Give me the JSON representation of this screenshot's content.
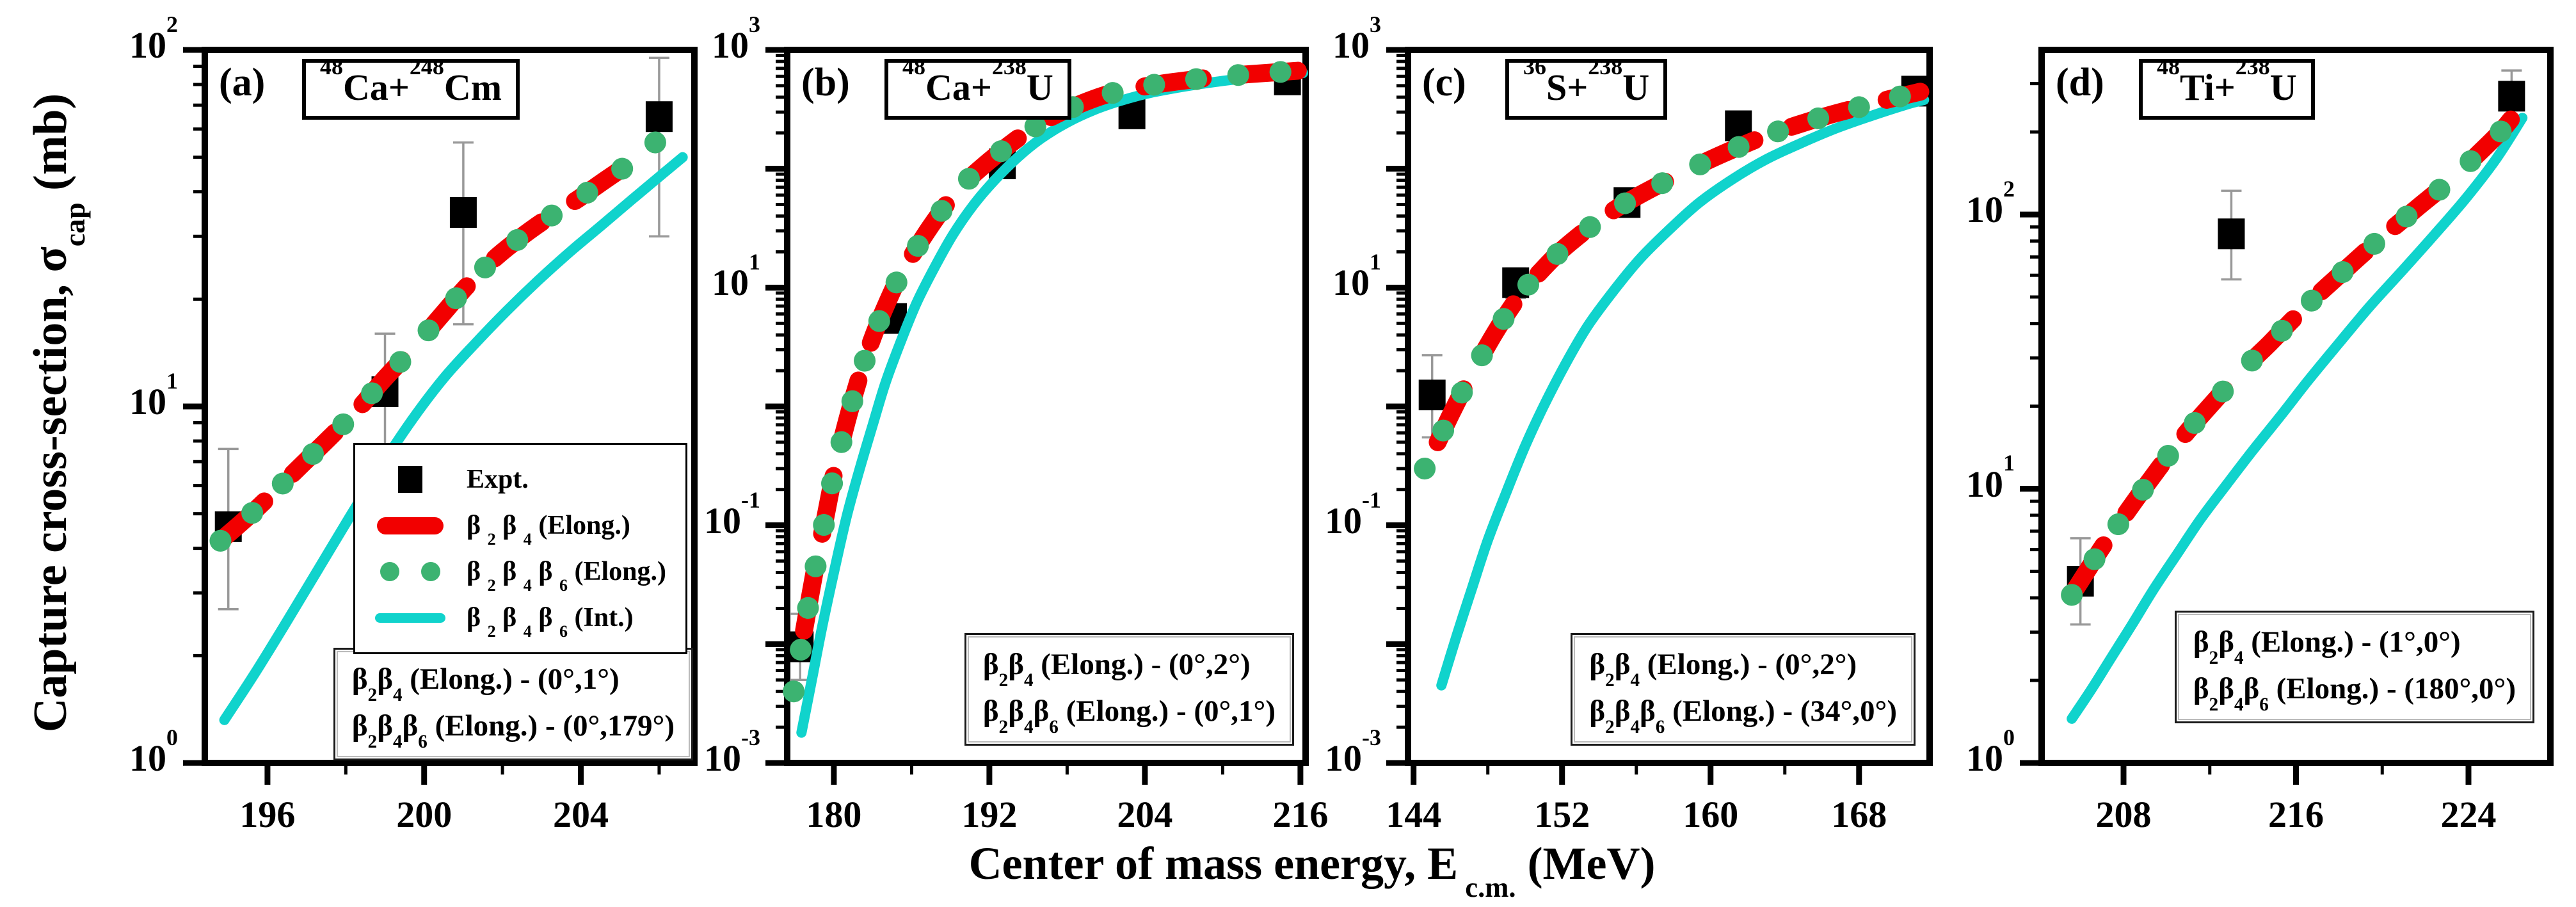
{
  "colors": {
    "expt": "#000000",
    "elong_red": "#f20000",
    "elong_green": "#3cb371",
    "int_cyan": "#10d3cc",
    "error_bar": "#999999",
    "frame": "#000000"
  },
  "chart_data": {
    "type": "line",
    "scale": "log-y",
    "xlabel_rich": [
      {
        "t": "Center of mass energy, E"
      },
      {
        "t": " c.m.",
        "v": "sub"
      },
      {
        "t": " (MeV)"
      }
    ],
    "ylabel_rich": [
      {
        "t": "Capture cross-section,  σ"
      },
      {
        "t": "cap",
        "v": "sub"
      },
      {
        "t": " (mb)"
      }
    ],
    "legend": {
      "panel": "a",
      "items": [
        {
          "marker": "expt-square",
          "label": [
            {
              "t": "Expt."
            }
          ]
        },
        {
          "marker": "red-dash",
          "label": [
            {
              "t": "β "
            },
            {
              "t": "2",
              "v": "sub"
            },
            {
              "t": " β "
            },
            {
              "t": "4",
              "v": "sub"
            },
            {
              "t": " (Elong.)"
            }
          ]
        },
        {
          "marker": "green-dots",
          "label": [
            {
              "t": "β "
            },
            {
              "t": "2",
              "v": "sub"
            },
            {
              "t": " β "
            },
            {
              "t": "4",
              "v": "sub"
            },
            {
              "t": " β "
            },
            {
              "t": "6",
              "v": "sub"
            },
            {
              "t": " (Elong.)"
            }
          ]
        },
        {
          "marker": "cyan-line",
          "label": [
            {
              "t": "β "
            },
            {
              "t": "2",
              "v": "sub"
            },
            {
              "t": " β "
            },
            {
              "t": "4",
              "v": "sub"
            },
            {
              "t": " β "
            },
            {
              "t": "6",
              "v": "sub"
            },
            {
              "t": " (Int.)"
            }
          ]
        }
      ]
    },
    "panels": [
      {
        "id": "a",
        "letter": "(a)",
        "title_rich": [
          {
            "t": "48",
            "v": "sup"
          },
          {
            "t": "Ca+"
          },
          {
            "t": "248",
            "v": "sup"
          },
          {
            "t": "Cm"
          }
        ],
        "x": {
          "min": 194.4,
          "max": 206.9,
          "major": [
            196,
            200,
            204
          ],
          "minor": [
            198,
            202,
            206
          ]
        },
        "y": {
          "logmin": 0,
          "logmax": 2,
          "label_exps": [
            2,
            1,
            0
          ]
        },
        "note_line1": [
          {
            "t": "β"
          },
          {
            "t": "2",
            "v": "sub"
          },
          {
            "t": "β"
          },
          {
            "t": "4",
            "v": "sub"
          },
          {
            "t": " (Elong.) -  (0°,1°)"
          }
        ],
        "note_line2": [
          {
            "t": "β"
          },
          {
            "t": "2",
            "v": "sub"
          },
          {
            "t": "β"
          },
          {
            "t": "4",
            "v": "sub"
          },
          {
            "t": "β"
          },
          {
            "t": "6",
            "v": "sub"
          },
          {
            "t": " (Elong.) -  (0°,179°)"
          }
        ],
        "expt": {
          "x": [
            195,
            199,
            201,
            206
          ],
          "y": [
            4.6,
            11,
            35,
            65
          ],
          "lo": [
            2.7,
            7.5,
            17,
            30
          ],
          "hi": [
            7.6,
            16,
            55,
            95
          ]
        },
        "elong": {
          "red_start": 0,
          "red_end": 15,
          "x": [
            194.8,
            195.5,
            196.2,
            196.9,
            197.6,
            198.3,
            199.0,
            199.7,
            200.4,
            201.1,
            201.8,
            202.5,
            203.2,
            203.9,
            204.6,
            205.3,
            205.9,
            206.4
          ],
          "y": [
            4.2,
            4.9,
            5.8,
            6.9,
            8.2,
            9.8,
            12.0,
            14.5,
            17.8,
            21.8,
            26.0,
            30.0,
            34.0,
            38.0,
            43.0,
            48.5,
            55.0,
            62.0
          ]
        },
        "int": {
          "x": [
            194.9,
            195.7,
            196.5,
            197.3,
            198.1,
            198.9,
            199.7,
            200.5,
            201.3,
            202.1,
            202.9,
            203.7,
            204.5,
            205.3,
            206.1,
            206.6
          ],
          "y": [
            1.32,
            1.8,
            2.5,
            3.5,
            4.9,
            6.8,
            9.2,
            12.0,
            15.0,
            18.5,
            22.5,
            27.0,
            32.0,
            38.0,
            45.0,
            50.0
          ]
        }
      },
      {
        "id": "b",
        "letter": "(b)",
        "title_rich": [
          {
            "t": "48",
            "v": "sup"
          },
          {
            "t": "Ca+"
          },
          {
            "t": "238",
            "v": "sup"
          },
          {
            "t": "U"
          }
        ],
        "x": {
          "min": 176.4,
          "max": 216.4,
          "major": [
            180,
            192,
            204,
            216
          ],
          "minor": [
            186,
            198,
            210
          ]
        },
        "y": {
          "logmin": -3,
          "logmax": 3,
          "label_exps": [
            3,
            1,
            -1,
            -3
          ]
        },
        "note_line1": [
          {
            "t": "β"
          },
          {
            "t": "2",
            "v": "sub"
          },
          {
            "t": "β"
          },
          {
            "t": "4",
            "v": "sub"
          },
          {
            "t": " (Elong.) -  (0°,2°)"
          }
        ],
        "note_line2": [
          {
            "t": "β"
          },
          {
            "t": "2",
            "v": "sub"
          },
          {
            "t": "β"
          },
          {
            "t": "4",
            "v": "sub"
          },
          {
            "t": "β"
          },
          {
            "t": "6",
            "v": "sub"
          },
          {
            "t": " (Elong.) -  (0°,1°)"
          }
        ],
        "expt": {
          "x": [
            177.4,
            184.6,
            193,
            203,
            215
          ],
          "y": [
            0.0095,
            5.5,
            110,
            290,
            560
          ],
          "lo": [
            0.005,
            4.2,
            88,
            235,
            480
          ],
          "hi": [
            0.018,
            7.2,
            138,
            355,
            650
          ]
        },
        "elong": {
          "red_start": 1,
          "red_end": 26,
          "x": [
            176.9,
            177.7,
            178.5,
            179.3,
            180.1,
            181,
            182,
            183,
            184,
            185,
            186.2,
            187.4,
            188.8,
            190.2,
            191.8,
            193.4,
            195.2,
            197,
            199,
            201,
            203,
            205,
            207.2,
            209.4,
            211.6,
            213.8,
            215.8
          ],
          "y": [
            0.004,
            0.013,
            0.04,
            0.11,
            0.3,
            0.75,
            1.8,
            3.8,
            7,
            12,
            20,
            32,
            52,
            78,
            112,
            155,
            215,
            280,
            350,
            420,
            470,
            515,
            555,
            590,
            620,
            645,
            668
          ]
        },
        "int": {
          "x": [
            177.5,
            178.3,
            179.1,
            180,
            181,
            182,
            183,
            184,
            185.2,
            186.4,
            187.8,
            189.2,
            190.8,
            192.4,
            194.2,
            196,
            198,
            200,
            202,
            204,
            206,
            208.2,
            210.4,
            212.6,
            214.8,
            216.2
          ],
          "y": [
            0.0018,
            0.005,
            0.014,
            0.04,
            0.12,
            0.3,
            0.7,
            1.6,
            3.6,
            7.5,
            15,
            28,
            50,
            80,
            125,
            180,
            245,
            310,
            370,
            425,
            470,
            515,
            555,
            590,
            620,
            640
          ]
        }
      },
      {
        "id": "c",
        "letter": "(c)",
        "title_rich": [
          {
            "t": "36",
            "v": "sup"
          },
          {
            "t": "S+"
          },
          {
            "t": "238",
            "v": "sup"
          },
          {
            "t": "U"
          }
        ],
        "x": {
          "min": 143.7,
          "max": 171.8,
          "major": [
            144,
            152,
            160,
            168
          ],
          "minor": [
            148,
            156,
            164
          ]
        },
        "y": {
          "logmin": -3,
          "logmax": 3,
          "label_exps": [
            3,
            1,
            -1,
            -3
          ]
        },
        "note_line1": [
          {
            "t": "β"
          },
          {
            "t": "2",
            "v": "sub"
          },
          {
            "t": "β"
          },
          {
            "t": "4",
            "v": "sub"
          },
          {
            "t": " (Elong.) -  (0°,2°)"
          }
        ],
        "note_line2": [
          {
            "t": "β"
          },
          {
            "t": "2",
            "v": "sub"
          },
          {
            "t": "β"
          },
          {
            "t": "4",
            "v": "sub"
          },
          {
            "t": "β"
          },
          {
            "t": "6",
            "v": "sub"
          },
          {
            "t": " (Elong.) -  (34°,0°)"
          }
        ],
        "expt": {
          "x": [
            145,
            149.5,
            155.5,
            161.5,
            171
          ],
          "y": [
            1.25,
            11,
            52,
            230,
            450
          ],
          "lo": [
            0.55,
            8.2,
            40,
            185,
            385
          ],
          "hi": [
            2.7,
            14.5,
            67,
            285,
            530
          ]
        },
        "elong": {
          "red_start": 1,
          "red_end": 23,
          "x": [
            144.6,
            145.3,
            146,
            146.8,
            147.6,
            148.4,
            149.2,
            150,
            150.9,
            151.8,
            152.8,
            153.8,
            154.9,
            156,
            157.2,
            158.5,
            159.9,
            161.4,
            163,
            164.6,
            166.3,
            168,
            169.7,
            171.3
          ],
          "y": [
            0.3,
            0.5,
            0.85,
            1.5,
            2.55,
            4.2,
            6.6,
            9.8,
            14,
            19.5,
            26.5,
            35,
            46,
            58,
            73,
            92,
            118,
            150,
            190,
            232,
            280,
            330,
            388,
            445
          ]
        },
        "int": {
          "x": [
            145.5,
            146.3,
            147.1,
            148,
            149,
            150,
            151,
            152.2,
            153.4,
            154.8,
            156.2,
            157.8,
            159.4,
            161.2,
            163,
            164.9,
            166.8,
            168.7,
            170.5,
            171.5
          ],
          "y": [
            0.0045,
            0.0115,
            0.028,
            0.075,
            0.19,
            0.46,
            1.0,
            2.3,
            4.8,
            9.5,
            17.5,
            31,
            52,
            82,
            120,
            165,
            220,
            280,
            345,
            380
          ]
        }
      },
      {
        "id": "d",
        "letter": "(d)",
        "title_rich": [
          {
            "t": "48",
            "v": "sup"
          },
          {
            "t": "Ti+"
          },
          {
            "t": "238",
            "v": "sup"
          },
          {
            "t": "U"
          }
        ],
        "x": {
          "min": 204.2,
          "max": 227.8,
          "major": [
            208,
            216,
            224
          ],
          "minor": [
            212,
            220
          ]
        },
        "y": {
          "logmin": 0,
          "logmax": 2.6,
          "label_exps": [
            2,
            1,
            0
          ]
        },
        "note_line1": [
          {
            "t": "β"
          },
          {
            "t": "2",
            "v": "sub"
          },
          {
            "t": "β"
          },
          {
            "t": "4",
            "v": "sub"
          },
          {
            "t": " (Elong.) -  (1°,0°)"
          }
        ],
        "note_line2": [
          {
            "t": "β"
          },
          {
            "t": "2",
            "v": "sub"
          },
          {
            "t": "β"
          },
          {
            "t": "4",
            "v": "sub"
          },
          {
            "t": "β"
          },
          {
            "t": "6",
            "v": "sub"
          },
          {
            "t": " (Elong.) -  (180°,0°)"
          }
        ],
        "expt": {
          "x": [
            206,
            213,
            226
          ],
          "y": [
            4.6,
            85,
            270
          ],
          "lo": [
            3.2,
            58,
            212
          ],
          "hi": [
            6.6,
            122,
            335
          ]
        },
        "elong": {
          "red_start": 0,
          "red_end": 21,
          "x": [
            205.6,
            206.3,
            207,
            207.8,
            208.6,
            209.4,
            210.2,
            211,
            211.9,
            212.8,
            213.8,
            214.8,
            215.8,
            216.9,
            218,
            219.2,
            220.4,
            221.7,
            223,
            224.4,
            225.6,
            226.5
          ],
          "y": [
            4.1,
            5.0,
            6.1,
            7.5,
            9.2,
            11.2,
            13.6,
            16.3,
            19.6,
            23.5,
            28.5,
            34,
            41,
            50,
            60,
            73,
            88,
            107,
            130,
            165,
            205,
            252
          ]
        },
        "int": {
          "x": [
            205.6,
            206.5,
            207.4,
            208.4,
            209.4,
            210.5,
            211.6,
            212.8,
            214,
            215.3,
            216.6,
            218,
            219.4,
            220.9,
            222.4,
            223.9,
            225.3,
            226.5
          ],
          "y": [
            1.45,
            1.85,
            2.4,
            3.2,
            4.3,
            5.8,
            7.8,
            10.4,
            13.8,
            18.5,
            25,
            34,
            46,
            62,
            84,
            115,
            160,
            225
          ]
        }
      }
    ]
  }
}
